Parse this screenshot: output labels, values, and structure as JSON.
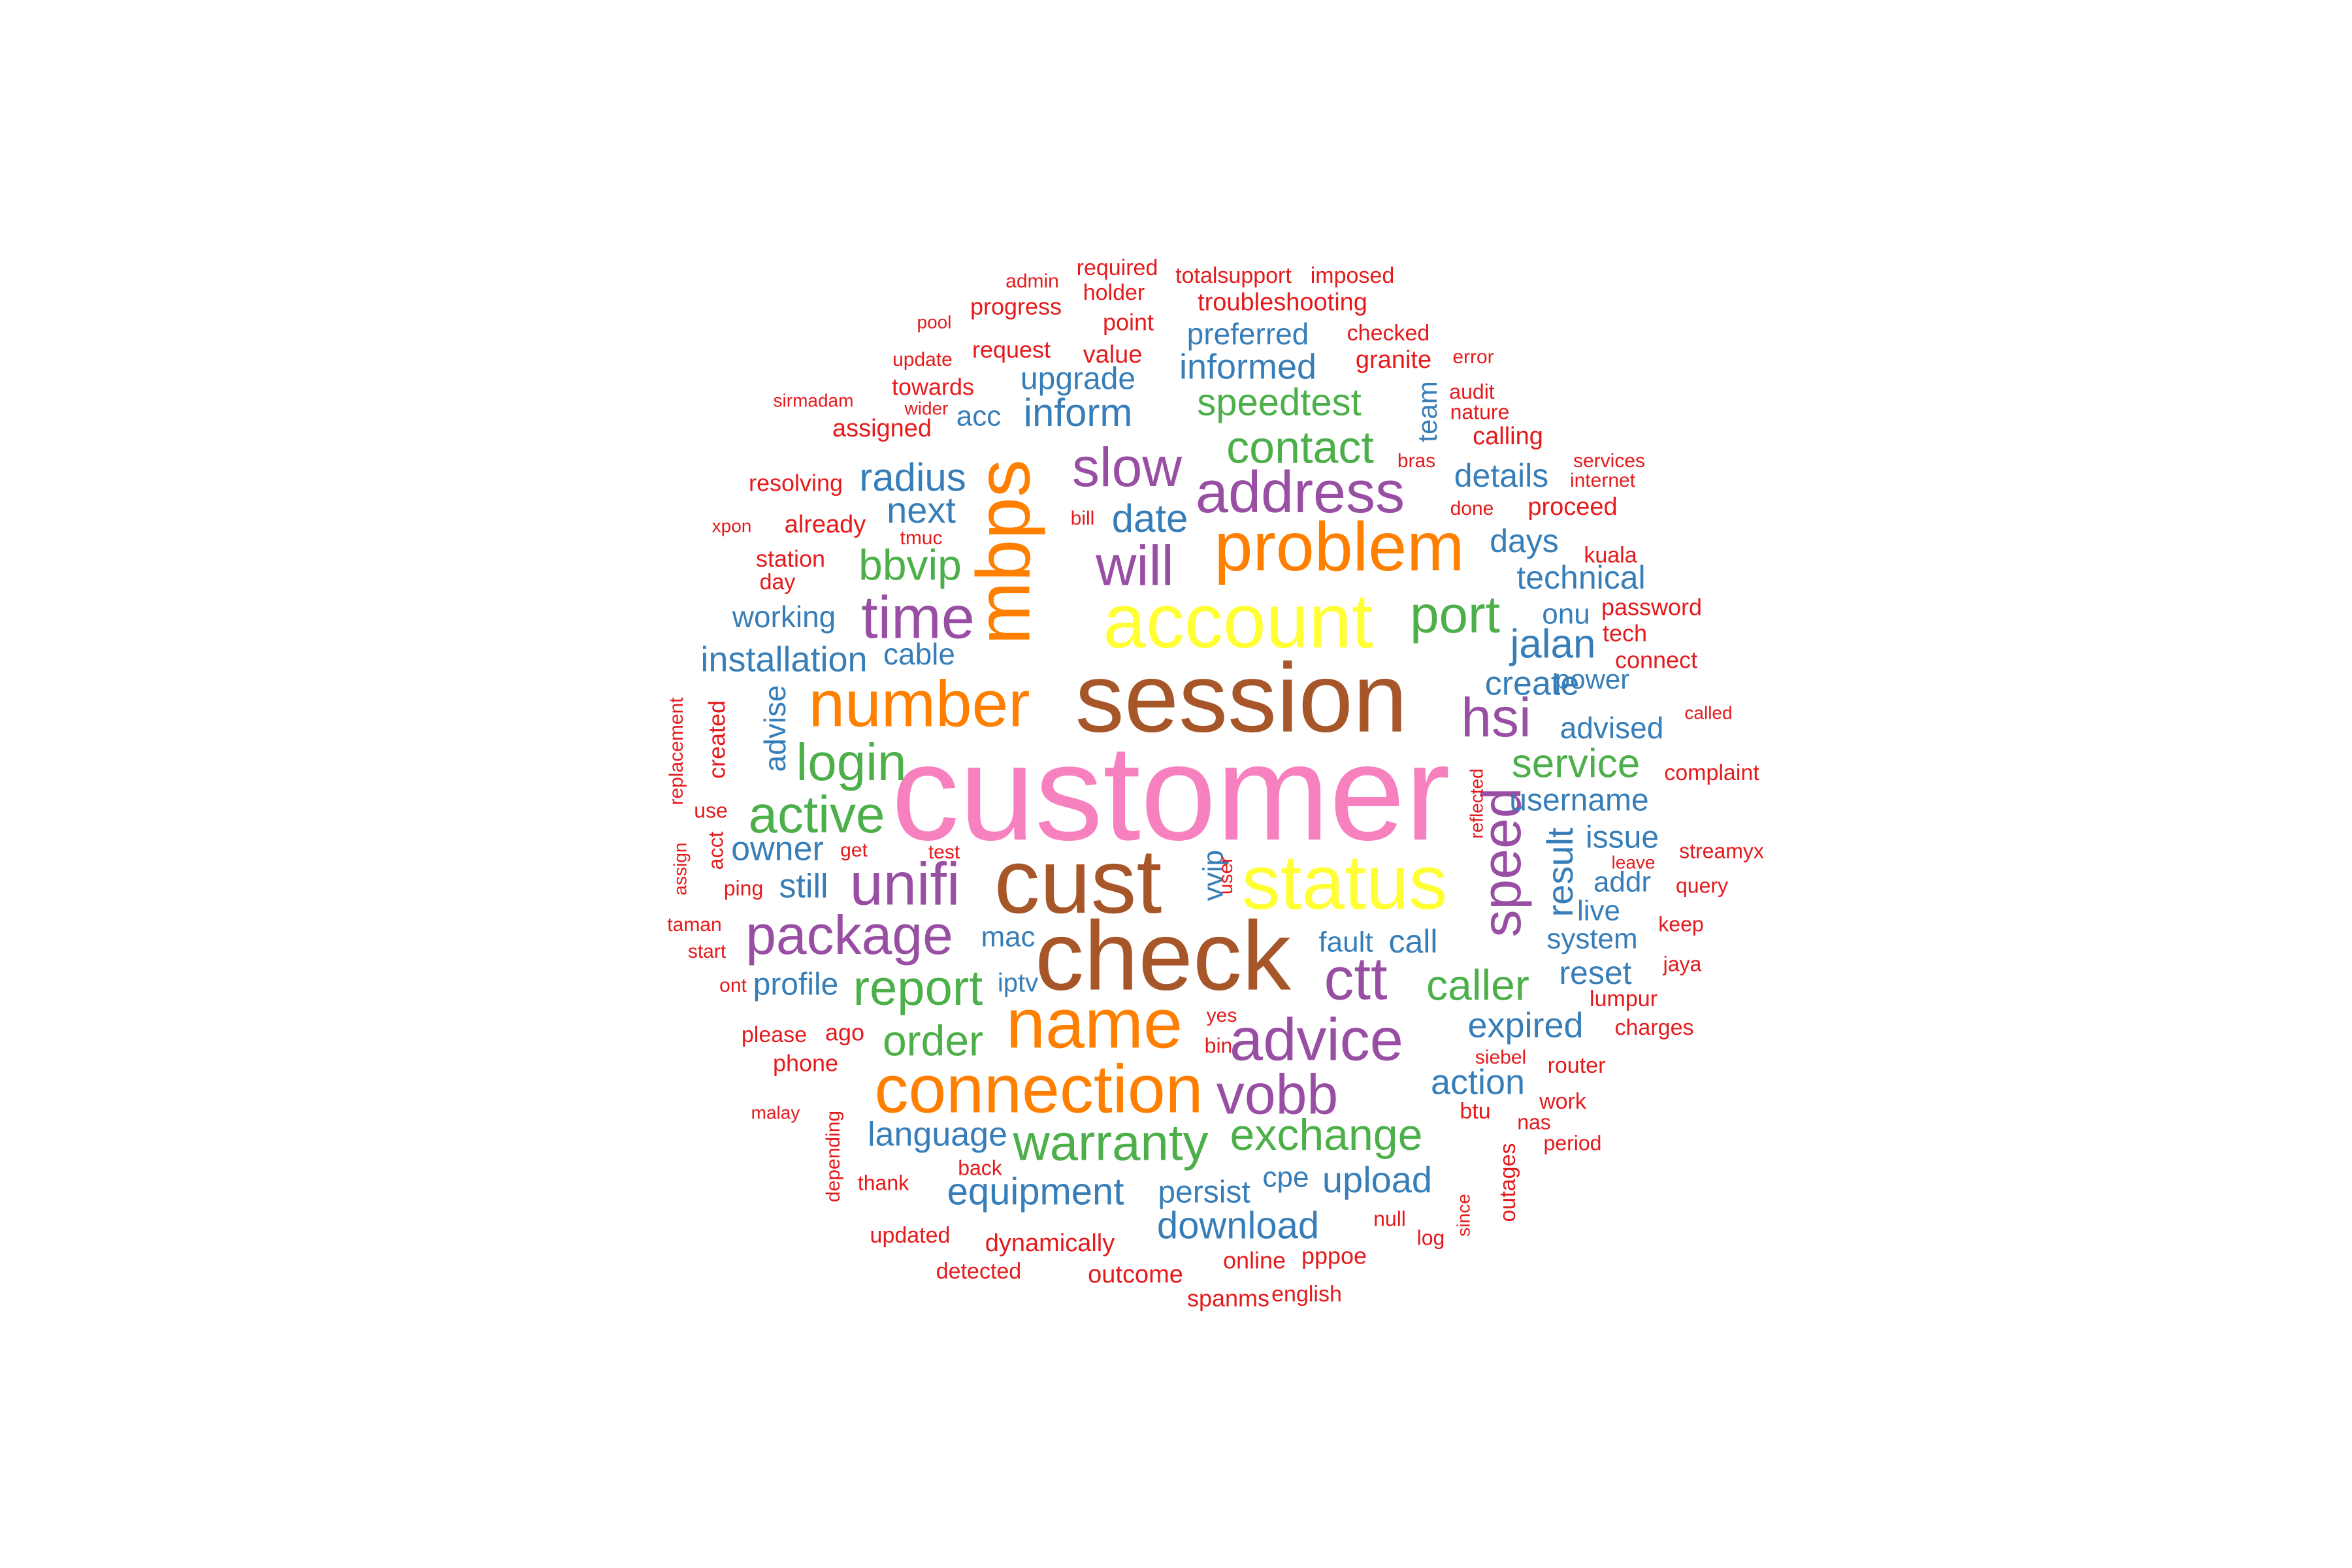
{
  "palette": {
    "pink": "#F781BF",
    "brown": "#A65628",
    "yellow": "#FFFF33",
    "orange": "#FF7F00",
    "purple": "#984EA3",
    "green": "#4DAF4A",
    "blue": "#377EB8",
    "red": "#E41A1C"
  },
  "words": [
    {
      "text": "customer",
      "weight": 100,
      "color": "pink"
    },
    {
      "text": "session",
      "weight": 82,
      "color": "brown"
    },
    {
      "text": "check",
      "weight": 80,
      "color": "brown"
    },
    {
      "text": "cust",
      "weight": 78,
      "color": "brown"
    },
    {
      "text": "account",
      "weight": 66,
      "color": "yellow"
    },
    {
      "text": "status",
      "weight": 66,
      "color": "yellow"
    },
    {
      "text": "mbps",
      "weight": 62,
      "color": "orange"
    },
    {
      "text": "name",
      "weight": 60,
      "color": "orange"
    },
    {
      "text": "problem",
      "weight": 58,
      "color": "orange"
    },
    {
      "text": "connection",
      "weight": 57,
      "color": "orange"
    },
    {
      "text": "number",
      "weight": 54,
      "color": "orange"
    },
    {
      "text": "advice",
      "weight": 50,
      "color": "purple"
    },
    {
      "text": "address",
      "weight": 47,
      "color": "purple"
    },
    {
      "text": "time",
      "weight": 46,
      "color": "purple"
    },
    {
      "text": "unifi",
      "weight": 46,
      "color": "purple"
    },
    {
      "text": "package",
      "weight": 45,
      "color": "purple"
    },
    {
      "text": "ctt",
      "weight": 45,
      "color": "purple"
    },
    {
      "text": "vobb",
      "weight": 44,
      "color": "purple"
    },
    {
      "text": "speed",
      "weight": 43,
      "color": "purple"
    },
    {
      "text": "will",
      "weight": 43,
      "color": "purple"
    },
    {
      "text": "slow",
      "weight": 42,
      "color": "purple"
    },
    {
      "text": "hsi",
      "weight": 42,
      "color": "purple"
    },
    {
      "text": "login",
      "weight": 38,
      "color": "green"
    },
    {
      "text": "warranty",
      "weight": 38,
      "color": "green"
    },
    {
      "text": "active",
      "weight": 37,
      "color": "green"
    },
    {
      "text": "port",
      "weight": 37,
      "color": "green"
    },
    {
      "text": "report",
      "weight": 35,
      "color": "green"
    },
    {
      "text": "exchange",
      "weight": 33,
      "color": "green"
    },
    {
      "text": "contact",
      "weight": 33,
      "color": "green"
    },
    {
      "text": "order",
      "weight": 32,
      "color": "green"
    },
    {
      "text": "caller",
      "weight": 32,
      "color": "green"
    },
    {
      "text": "service",
      "weight": 31,
      "color": "green"
    },
    {
      "text": "bbvip",
      "weight": 31,
      "color": "green"
    },
    {
      "text": "speedtest",
      "weight": 29,
      "color": "green"
    },
    {
      "text": "jalan",
      "weight": 28,
      "color": "blue"
    },
    {
      "text": "radius",
      "weight": 28,
      "color": "blue"
    },
    {
      "text": "download",
      "weight": 28,
      "color": "blue"
    },
    {
      "text": "equipment",
      "weight": 28,
      "color": "blue"
    },
    {
      "text": "inform",
      "weight": 28,
      "color": "blue"
    },
    {
      "text": "result",
      "weight": 27,
      "color": "blue"
    },
    {
      "text": "date",
      "weight": 27,
      "color": "blue"
    },
    {
      "text": "next",
      "weight": 27,
      "color": "blue"
    },
    {
      "text": "informed",
      "weight": 26,
      "color": "blue"
    },
    {
      "text": "upload",
      "weight": 26,
      "color": "blue"
    },
    {
      "text": "expired",
      "weight": 26,
      "color": "blue"
    },
    {
      "text": "action",
      "weight": 26,
      "color": "blue"
    },
    {
      "text": "installation",
      "weight": 26,
      "color": "blue"
    },
    {
      "text": "owner",
      "weight": 26,
      "color": "blue"
    },
    {
      "text": "language",
      "weight": 25,
      "color": "blue"
    },
    {
      "text": "still",
      "weight": 25,
      "color": "blue"
    },
    {
      "text": "call",
      "weight": 25,
      "color": "blue"
    },
    {
      "text": "technical",
      "weight": 25,
      "color": "blue"
    },
    {
      "text": "details",
      "weight": 25,
      "color": "blue"
    },
    {
      "text": "create",
      "weight": 25,
      "color": "blue"
    },
    {
      "text": "reset",
      "weight": 24,
      "color": "blue"
    },
    {
      "text": "profile",
      "weight": 24,
      "color": "blue"
    },
    {
      "text": "username",
      "weight": 24,
      "color": "blue"
    },
    {
      "text": "issue",
      "weight": 24,
      "color": "blue"
    },
    {
      "text": "advise",
      "weight": 24,
      "color": "blue"
    },
    {
      "text": "days",
      "weight": 24,
      "color": "blue"
    },
    {
      "text": "preferred",
      "weight": 23,
      "color": "blue"
    },
    {
      "text": "upgrade",
      "weight": 23,
      "color": "blue"
    },
    {
      "text": "persist",
      "weight": 23,
      "color": "blue"
    },
    {
      "text": "advised",
      "weight": 23,
      "color": "blue"
    },
    {
      "text": "working",
      "weight": 23,
      "color": "blue"
    },
    {
      "text": "cable",
      "weight": 22,
      "color": "blue"
    },
    {
      "text": "mac",
      "weight": 22,
      "color": "blue"
    },
    {
      "text": "fault",
      "weight": 22,
      "color": "blue"
    },
    {
      "text": "system",
      "weight": 22,
      "color": "blue"
    },
    {
      "text": "vvip",
      "weight": 22,
      "color": "blue"
    },
    {
      "text": "live",
      "weight": 22,
      "color": "blue"
    },
    {
      "text": "addr",
      "weight": 22,
      "color": "blue"
    },
    {
      "text": "onu",
      "weight": 22,
      "color": "blue"
    },
    {
      "text": "acc",
      "weight": 21,
      "color": "blue"
    },
    {
      "text": "cpe",
      "weight": 21,
      "color": "blue"
    },
    {
      "text": "iptv",
      "weight": 21,
      "color": "blue"
    },
    {
      "text": "power",
      "weight": 21,
      "color": "blue"
    },
    {
      "text": "team",
      "weight": 21,
      "color": "blue"
    },
    {
      "text": "troubleshooting",
      "weight": 20,
      "color": "red"
    },
    {
      "text": "dynamically",
      "weight": 20,
      "color": "red"
    },
    {
      "text": "outcome",
      "weight": 20,
      "color": "red"
    },
    {
      "text": "granite",
      "weight": 20,
      "color": "red"
    },
    {
      "text": "proceed",
      "weight": 20,
      "color": "red"
    },
    {
      "text": "calling",
      "weight": 20,
      "color": "red"
    },
    {
      "text": "already",
      "weight": 20,
      "color": "red"
    },
    {
      "text": "assigned",
      "weight": 20,
      "color": "red"
    },
    {
      "text": "value",
      "weight": 20,
      "color": "red"
    },
    {
      "text": "station",
      "weight": 19,
      "color": "red"
    },
    {
      "text": "resolving",
      "weight": 19,
      "color": "red"
    },
    {
      "text": "request",
      "weight": 19,
      "color": "red"
    },
    {
      "text": "towards",
      "weight": 19,
      "color": "red"
    },
    {
      "text": "progress",
      "weight": 19,
      "color": "red"
    },
    {
      "text": "point",
      "weight": 19,
      "color": "red"
    },
    {
      "text": "phone",
      "weight": 19,
      "color": "red"
    },
    {
      "text": "ago",
      "weight": 19,
      "color": "red"
    },
    {
      "text": "tech",
      "weight": 19,
      "color": "red"
    },
    {
      "text": "connect",
      "weight": 19,
      "color": "red"
    },
    {
      "text": "password",
      "weight": 19,
      "color": "red"
    },
    {
      "text": "spanms",
      "weight": 19,
      "color": "red"
    },
    {
      "text": "online",
      "weight": 19,
      "color": "red"
    },
    {
      "text": "pppoe",
      "weight": 19,
      "color": "red"
    },
    {
      "text": "checked",
      "weight": 18,
      "color": "red"
    },
    {
      "text": "holder",
      "weight": 18,
      "color": "red"
    },
    {
      "text": "required",
      "weight": 18,
      "color": "red"
    },
    {
      "text": "totalsupport",
      "weight": 18,
      "color": "red"
    },
    {
      "text": "imposed",
      "weight": 18,
      "color": "red"
    },
    {
      "text": "created",
      "weight": 18,
      "color": "red"
    },
    {
      "text": "please",
      "weight": 18,
      "color": "red"
    },
    {
      "text": "day",
      "weight": 18,
      "color": "red"
    },
    {
      "text": "detected",
      "weight": 18,
      "color": "red"
    },
    {
      "text": "updated",
      "weight": 18,
      "color": "red"
    },
    {
      "text": "english",
      "weight": 18,
      "color": "red"
    },
    {
      "text": "complaint",
      "weight": 18,
      "color": "red"
    },
    {
      "text": "kuala",
      "weight": 18,
      "color": "red"
    },
    {
      "text": "lumpur",
      "weight": 18,
      "color": "red"
    },
    {
      "text": "router",
      "weight": 18,
      "color": "red"
    },
    {
      "text": "charges",
      "weight": 18,
      "color": "red"
    },
    {
      "text": "work",
      "weight": 18,
      "color": "red"
    },
    {
      "text": "btu",
      "weight": 18,
      "color": "red"
    },
    {
      "text": "outages",
      "weight": 18,
      "color": "red"
    },
    {
      "text": "period",
      "weight": 17,
      "color": "red"
    },
    {
      "text": "keep",
      "weight": 17,
      "color": "red"
    },
    {
      "text": "jaya",
      "weight": 17,
      "color": "red"
    },
    {
      "text": "streamyx",
      "weight": 17,
      "color": "red"
    },
    {
      "text": "query",
      "weight": 17,
      "color": "red"
    },
    {
      "text": "back",
      "weight": 17,
      "color": "red"
    },
    {
      "text": "thank",
      "weight": 17,
      "color": "red"
    },
    {
      "text": "null",
      "weight": 17,
      "color": "red"
    },
    {
      "text": "log",
      "weight": 17,
      "color": "red"
    },
    {
      "text": "bin",
      "weight": 17,
      "color": "red"
    },
    {
      "text": "yes",
      "weight": 16,
      "color": "red"
    },
    {
      "text": "nas",
      "weight": 17,
      "color": "red"
    },
    {
      "text": "depending",
      "weight": 16,
      "color": "red"
    },
    {
      "text": "nature",
      "weight": 17,
      "color": "red"
    },
    {
      "text": "audit",
      "weight": 17,
      "color": "red"
    },
    {
      "text": "error",
      "weight": 16,
      "color": "red"
    },
    {
      "text": "update",
      "weight": 16,
      "color": "red"
    },
    {
      "text": "admin",
      "weight": 16,
      "color": "red"
    },
    {
      "text": "pool",
      "weight": 15,
      "color": "red"
    },
    {
      "text": "sirmadam",
      "weight": 15,
      "color": "red"
    },
    {
      "text": "wider",
      "weight": 15,
      "color": "red"
    },
    {
      "text": "xpon",
      "weight": 15,
      "color": "red"
    },
    {
      "text": "bill",
      "weight": 16,
      "color": "red"
    },
    {
      "text": "tmuc",
      "weight": 16,
      "color": "red"
    },
    {
      "text": "bras",
      "weight": 16,
      "color": "red"
    },
    {
      "text": "done",
      "weight": 16,
      "color": "red"
    },
    {
      "text": "services",
      "weight": 16,
      "color": "red"
    },
    {
      "text": "internet",
      "weight": 16,
      "color": "red"
    },
    {
      "text": "called",
      "weight": 15,
      "color": "red"
    },
    {
      "text": "replacement",
      "weight": 16,
      "color": "red"
    },
    {
      "text": "use",
      "weight": 17,
      "color": "red"
    },
    {
      "text": "acct",
      "weight": 17,
      "color": "red"
    },
    {
      "text": "assign",
      "weight": 15,
      "color": "red"
    },
    {
      "text": "get",
      "weight": 16,
      "color": "red"
    },
    {
      "text": "test",
      "weight": 16,
      "color": "red"
    },
    {
      "text": "ping",
      "weight": 17,
      "color": "red"
    },
    {
      "text": "taman",
      "weight": 16,
      "color": "red"
    },
    {
      "text": "start",
      "weight": 16,
      "color": "red"
    },
    {
      "text": "ont",
      "weight": 16,
      "color": "red"
    },
    {
      "text": "malay",
      "weight": 15,
      "color": "red"
    },
    {
      "text": "user",
      "weight": 16,
      "color": "red"
    },
    {
      "text": "siebel",
      "weight": 16,
      "color": "red"
    },
    {
      "text": "reflected",
      "weight": 15,
      "color": "red"
    },
    {
      "text": "leave",
      "weight": 15,
      "color": "red"
    },
    {
      "text": "since",
      "weight": 15,
      "color": "red"
    }
  ]
}
